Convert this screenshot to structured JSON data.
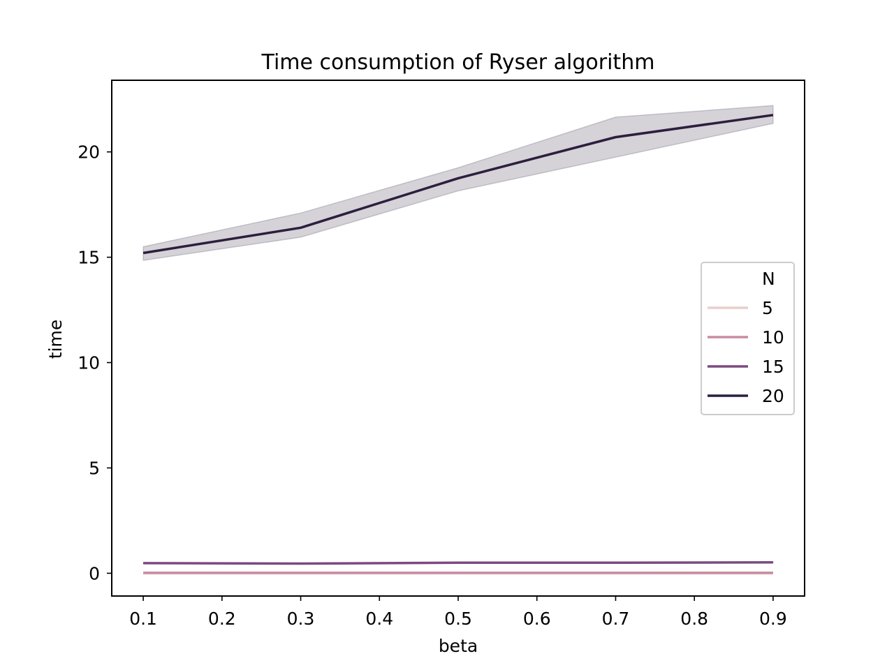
{
  "chart_data": {
    "type": "line",
    "title": "Time consumption of Ryser algorithm",
    "xlabel": "beta",
    "ylabel": "time",
    "x": [
      0.1,
      0.3,
      0.5,
      0.7,
      0.9
    ],
    "xlim": [
      0.06,
      0.94
    ],
    "ylim": [
      -1.08,
      23.4
    ],
    "xticks": [
      0.1,
      0.2,
      0.3,
      0.4,
      0.5,
      0.6,
      0.7,
      0.8,
      0.9
    ],
    "xtick_labels": [
      "0.1",
      "0.2",
      "0.3",
      "0.4",
      "0.5",
      "0.6",
      "0.7",
      "0.8",
      "0.9"
    ],
    "yticks": [
      0,
      5,
      10,
      15,
      20
    ],
    "ytick_labels": [
      "0",
      "5",
      "10",
      "15",
      "20"
    ],
    "grid": false,
    "legend": {
      "title": "N",
      "position": "center-right"
    },
    "series": [
      {
        "name": "5",
        "color": "#e8cfcb",
        "values": [
          0.0,
          0.0,
          0.0,
          0.0,
          0.0
        ],
        "ci_lower": [
          0.0,
          0.0,
          0.0,
          0.0,
          0.0
        ],
        "ci_upper": [
          0.0,
          0.0,
          0.0,
          0.0,
          0.0
        ]
      },
      {
        "name": "10",
        "color": "#c98ba3",
        "values": [
          0.02,
          0.02,
          0.02,
          0.02,
          0.02
        ],
        "ci_lower": [
          0.02,
          0.02,
          0.02,
          0.02,
          0.02
        ],
        "ci_upper": [
          0.02,
          0.02,
          0.02,
          0.02,
          0.02
        ]
      },
      {
        "name": "15",
        "color": "#7b4a7f",
        "values": [
          0.48,
          0.46,
          0.5,
          0.5,
          0.52
        ],
        "ci_lower": [
          0.46,
          0.44,
          0.48,
          0.48,
          0.5
        ],
        "ci_upper": [
          0.5,
          0.48,
          0.52,
          0.52,
          0.54
        ]
      },
      {
        "name": "20",
        "color": "#2d1e3e",
        "band_color": "#2d1e3e",
        "values": [
          15.2,
          16.4,
          18.75,
          20.7,
          21.75
        ],
        "ci_lower": [
          14.85,
          15.95,
          18.15,
          19.75,
          21.35
        ],
        "ci_upper": [
          15.5,
          17.1,
          19.25,
          21.65,
          22.2
        ]
      }
    ]
  }
}
